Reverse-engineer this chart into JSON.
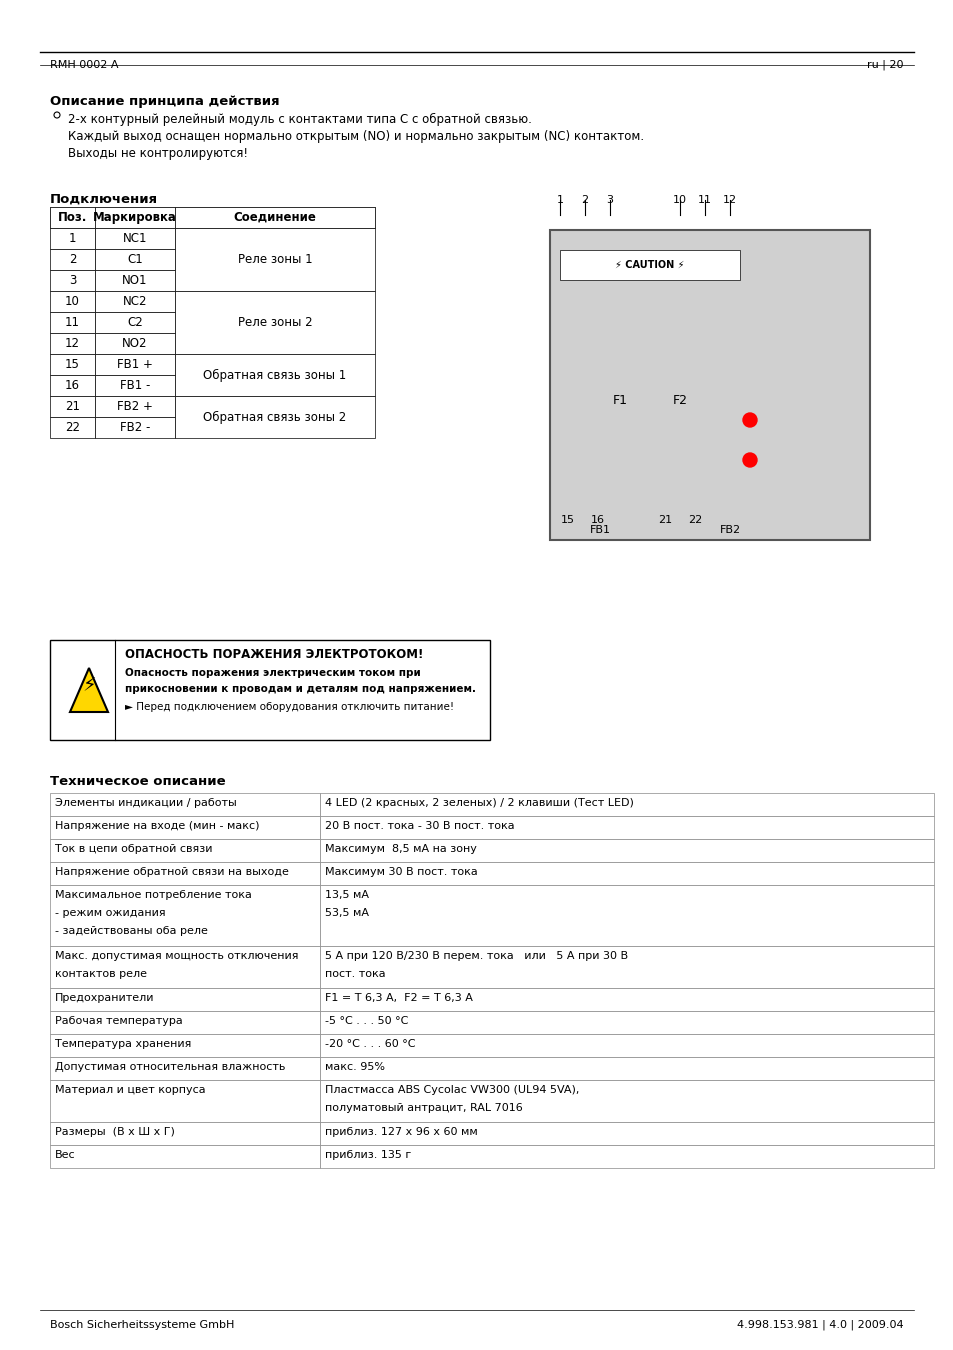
{
  "page_header_left": "RMH 0002 A",
  "page_header_right": "ru | 20",
  "page_footer_left": "Bosch Sicherheitssysteme GmbH",
  "page_footer_right": "4.998.153.981 | 4.0 | 2009.04",
  "section1_title": "Описание принципа действия",
  "section1_bullet": "2-х контурный релейный модуль с контактами типа C с обратной связью.",
  "section1_line2": "Каждый выход оснащен нормально открытым (NO) и нормально закрытым (NC) контактом.",
  "section1_line3": "Выходы не контролируются!",
  "section2_title": "Подключения",
  "table1_headers": [
    "Поз.",
    "Маркировка",
    "Соединение"
  ],
  "table1_rows": [
    [
      "1",
      "NC1",
      ""
    ],
    [
      "2",
      "C1",
      "Реле зоны 1"
    ],
    [
      "3",
      "NO1",
      ""
    ],
    [
      "10",
      "NC2",
      ""
    ],
    [
      "11",
      "C2",
      "Реле зоны 2"
    ],
    [
      "12",
      "NO2",
      ""
    ],
    [
      "15",
      "FB1 +",
      ""
    ],
    [
      "16",
      "FB1 -",
      "Обратная связь зоны 1"
    ],
    [
      "21",
      "FB2 +",
      ""
    ],
    [
      "22",
      "FB2 -",
      "Обратная связь зоны 2"
    ]
  ],
  "warning_title": "ОПАСНОСТЬ ПОРАЖЕНИЯ ЭЛЕКТРОТОКОМ!",
  "warning_line1": "Опасность поражения электрическим током при",
  "warning_line2": "прикосновении к проводам и деталям под напряжением.",
  "warning_line3": "► Перед подключением оборудования отключить питание!",
  "section3_title": "Техническое описание",
  "table2_rows": [
    [
      "Элементы индикации / работы",
      "4 LED (2 красных, 2 зеленых) / 2 клавиши (Тест LED)"
    ],
    [
      "Напряжение на входе (мин - макс)",
      "20 В пост. тока - 30 В пост. тока"
    ],
    [
      "Ток в цепи обратной связи",
      "Максимум  8,5 мА на зону"
    ],
    [
      "Напряжение обратной связи на выходе",
      "Максимум 30 В пост. тока"
    ],
    [
      "Максимальное потребление тока\n- режим ожидания\n- задействованы оба реле",
      "13,5 мА\n53,5 мА"
    ],
    [
      "Макс. допустимая мощность отключения\nконтактов реле",
      "5 А при 120 В/230 В перем. тока   или   5 А при 30 В\nпост. тока"
    ],
    [
      "Предохранители",
      "F1 = T 6,3 A,  F2 = T 6,3 A"
    ],
    [
      "Рабочая температура",
      "-5 °C . . . 50 °C"
    ],
    [
      "Температура хранения",
      "-20 °C . . . 60 °C"
    ],
    [
      "Допустимая относительная влажность",
      "макс. 95%"
    ],
    [
      "Материал и цвет корпуса",
      "Пластмасса ABS Cycolac VW300 (UL94 5VA),\nполуматовый антрацит, RAL 7016"
    ],
    [
      "Размеры  (В х Ш х Г)",
      "приблиз. 127 х 96 х 60 мм"
    ],
    [
      "Вес",
      "приблиз. 135 г"
    ]
  ]
}
